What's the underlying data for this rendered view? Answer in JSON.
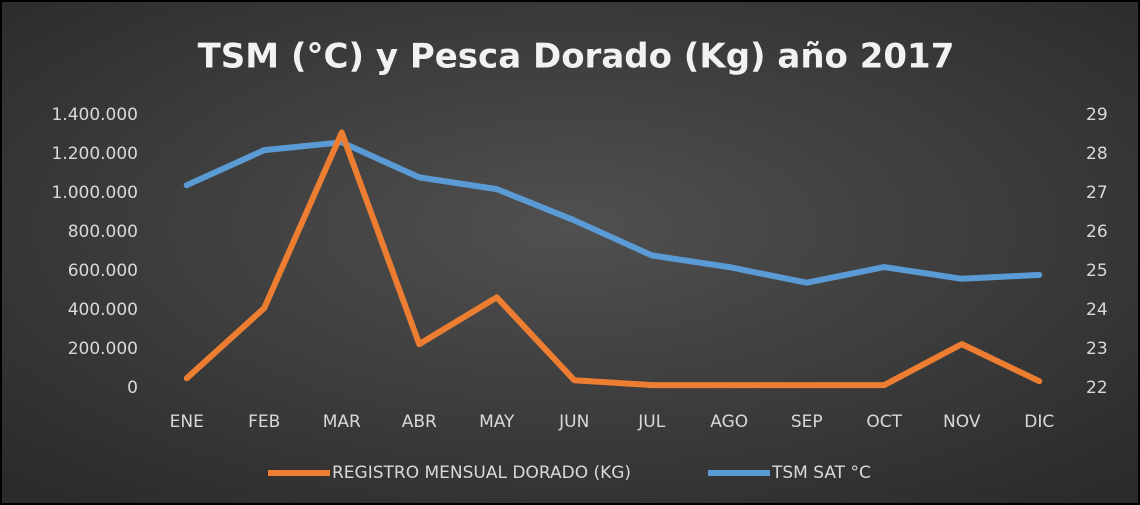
{
  "chart_data": {
    "type": "line",
    "title": "TSM (°C)  y Pesca Dorado (Kg) año 2017",
    "categories": [
      "ENE",
      "FEB",
      "MAR",
      "ABR",
      "MAY",
      "JUN",
      "JUL",
      "AGO",
      "SEP",
      "OCT",
      "NOV",
      "DIC"
    ],
    "series": [
      {
        "name": "REGISTRO MENSUAL DORADO (KG)",
        "color": "#ed7d31",
        "values": [
          50000,
          410000,
          1310000,
          225000,
          465000,
          40000,
          15000,
          15000,
          15000,
          15000,
          225000,
          35000
        ]
      },
      {
        "name": "TSM SAT °C",
        "color": "#5b9bd5",
        "axis": "y2",
        "values": [
          27.2,
          28.1,
          28.3,
          27.4,
          27.1,
          26.3,
          25.4,
          25.1,
          24.7,
          25.1,
          24.8,
          24.9
        ]
      }
    ],
    "ylim": [
      0,
      1400000
    ],
    "yticks": [
      0,
      {
        "value": 200000,
        "label": "200.000"
      },
      {
        "value": 400000,
        "label": "400.000"
      },
      {
        "value": 600000,
        "label": "600.000"
      },
      {
        "value": 800000,
        "label": "800.000"
      },
      {
        "value": 1000000,
        "label": "1.000.000"
      },
      {
        "value": 1200000,
        "label": "1.200.000"
      },
      {
        "value": 1400000,
        "label": "1.400.000"
      }
    ],
    "y2lim": [
      22,
      29
    ],
    "y2ticks": [
      22,
      23,
      24,
      25,
      26,
      27,
      28,
      29
    ],
    "legend": "bottom"
  }
}
